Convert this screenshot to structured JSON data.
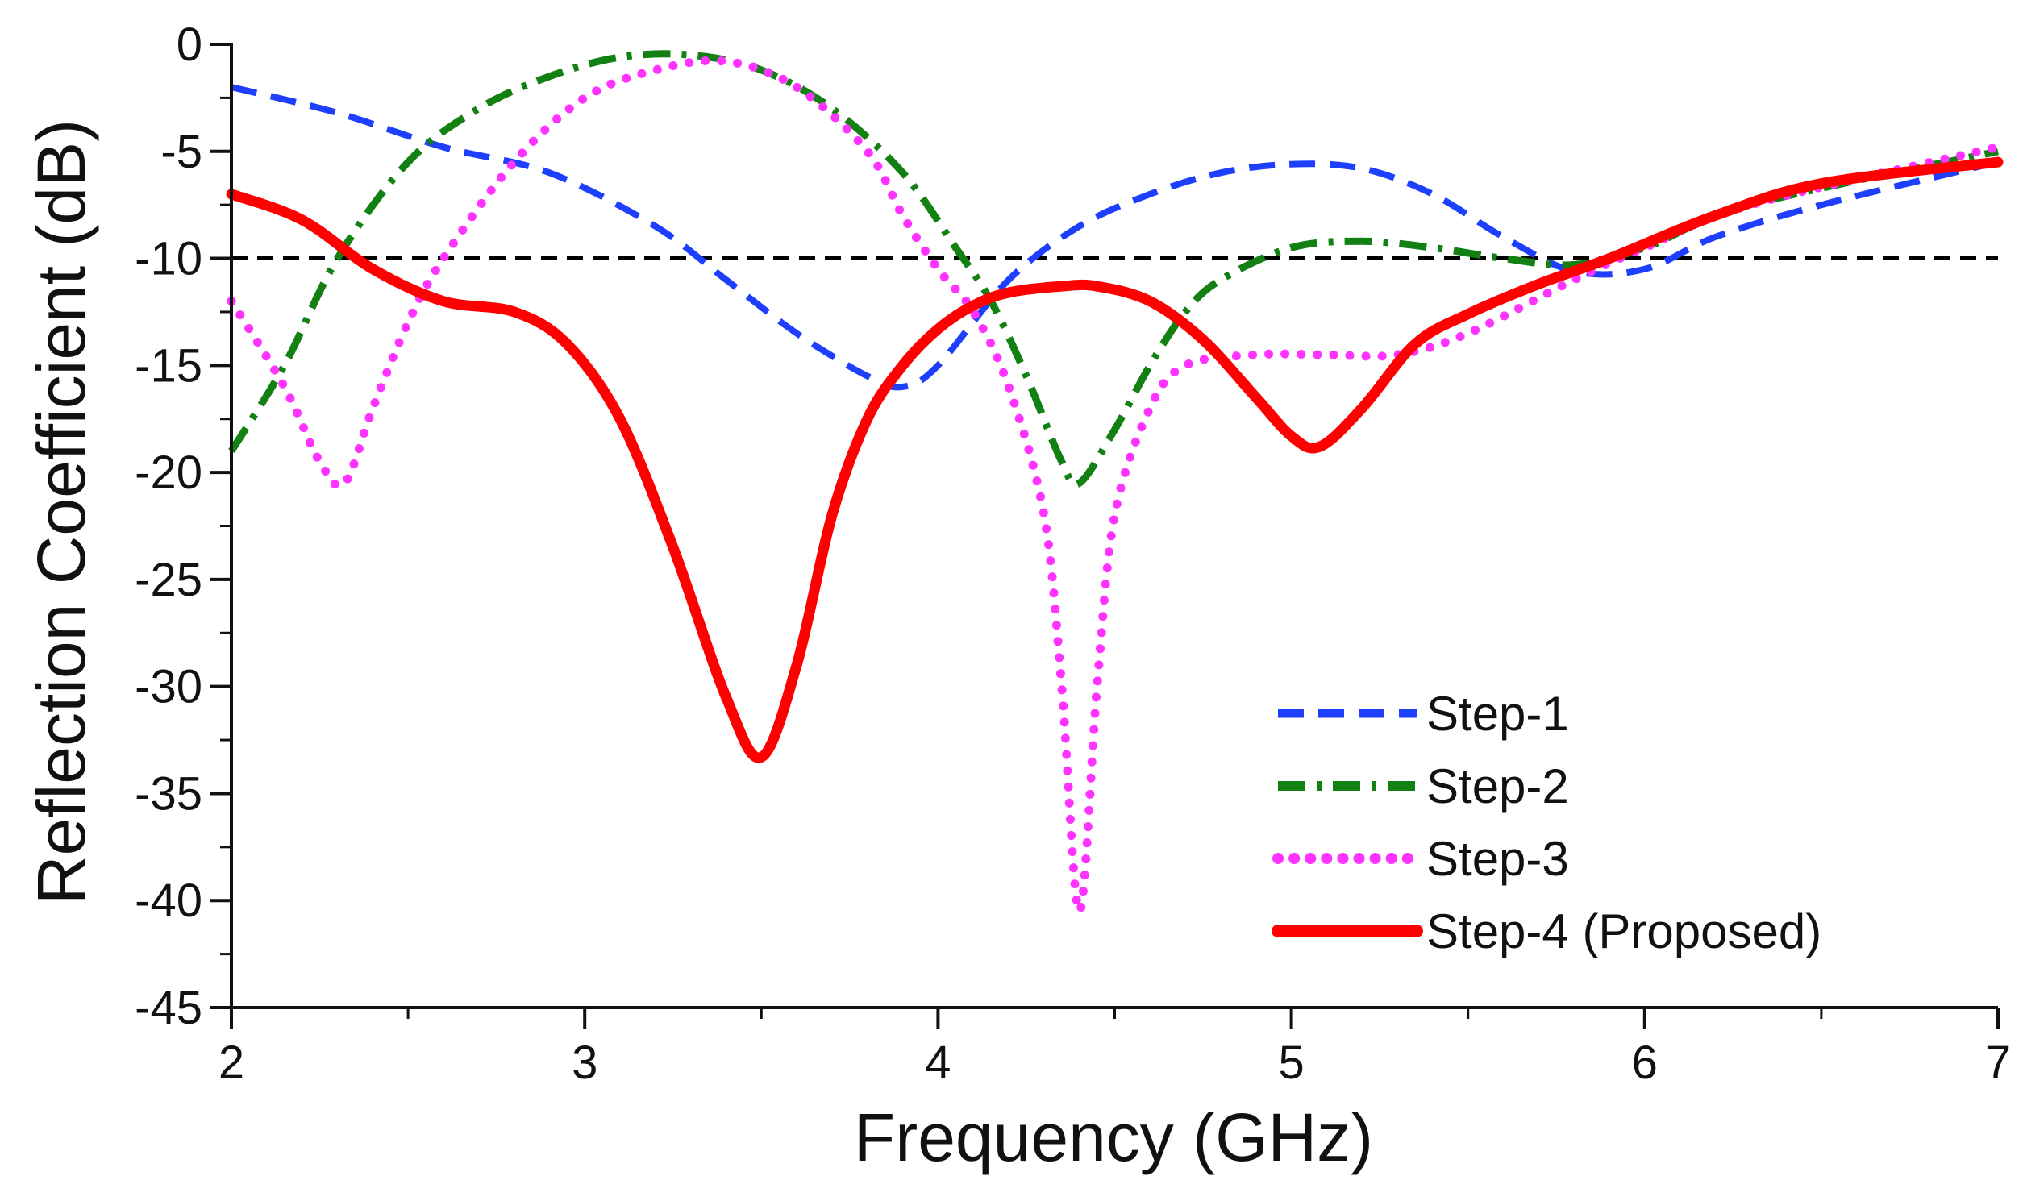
{
  "chart_data": {
    "type": "line",
    "title": "",
    "xlabel": "Frequency (GHz)",
    "ylabel": "Reflection Coefficient (dB)",
    "xlim": [
      2,
      7
    ],
    "ylim": [
      -45,
      0
    ],
    "x_ticks": [
      2,
      3,
      4,
      5,
      6,
      7
    ],
    "x_tick_labels": [
      "2",
      "3",
      "4",
      "5",
      "6",
      "7"
    ],
    "y_ticks": [
      0,
      -5,
      -10,
      -15,
      -20,
      -25,
      -30,
      -35,
      -40,
      -45
    ],
    "y_tick_labels": [
      "0",
      "-5",
      "-10",
      "-15",
      "-20",
      "-25",
      "-30",
      "-35",
      "-40",
      "-45"
    ],
    "reference_line": {
      "y": -10,
      "style": "dashed",
      "color": "#000000"
    },
    "legend_position": "bottom-right",
    "series": [
      {
        "name": "Step-1",
        "color": "#1f3fff",
        "style": "dashed",
        "x": [
          2.0,
          2.3,
          2.6,
          2.9,
          3.2,
          3.4,
          3.6,
          3.8,
          3.9,
          4.0,
          4.2,
          4.4,
          4.6,
          4.8,
          5.0,
          5.2,
          5.4,
          5.6,
          5.8,
          6.0,
          6.2,
          6.5,
          7.0
        ],
        "y": [
          -2.0,
          -3.2,
          -4.8,
          -6.0,
          -8.5,
          -11.0,
          -13.5,
          -15.5,
          -16.0,
          -15.0,
          -11.0,
          -8.5,
          -7.0,
          -6.0,
          -5.6,
          -5.8,
          -7.0,
          -9.0,
          -10.6,
          -10.5,
          -9.0,
          -7.5,
          -5.5
        ]
      },
      {
        "name": "Step-2",
        "color": "#138013",
        "style": "dash-dot",
        "x": [
          2.0,
          2.15,
          2.3,
          2.5,
          2.7,
          2.9,
          3.1,
          3.3,
          3.5,
          3.7,
          3.9,
          4.05,
          4.15,
          4.25,
          4.35,
          4.4,
          4.5,
          4.6,
          4.7,
          4.8,
          5.0,
          5.2,
          5.4,
          5.6,
          5.8,
          6.0,
          6.3,
          7.0
        ],
        "y": [
          -19.0,
          -15.0,
          -10.0,
          -5.5,
          -3.0,
          -1.5,
          -0.6,
          -0.5,
          -1.2,
          -3.0,
          -6.0,
          -9.5,
          -12.0,
          -15.5,
          -19.5,
          -20.5,
          -18.0,
          -15.0,
          -12.5,
          -11.0,
          -9.5,
          -9.2,
          -9.5,
          -10.0,
          -10.3,
          -9.5,
          -7.5,
          -5.0
        ]
      },
      {
        "name": "Step-3",
        "color": "#ff33ff",
        "style": "dotted",
        "x": [
          2.0,
          2.15,
          2.25,
          2.32,
          2.4,
          2.5,
          2.6,
          2.8,
          3.0,
          3.2,
          3.4,
          3.6,
          3.8,
          3.9,
          4.0,
          4.1,
          4.2,
          4.3,
          4.35,
          4.4,
          4.45,
          4.5,
          4.6,
          4.7,
          4.9,
          5.1,
          5.3,
          5.5,
          5.8,
          6.0,
          6.3,
          7.0
        ],
        "y": [
          -12.0,
          -16.0,
          -19.5,
          -20.5,
          -17.0,
          -13.0,
          -10.0,
          -5.5,
          -2.5,
          -1.2,
          -0.8,
          -2.0,
          -5.0,
          -8.0,
          -10.5,
          -12.5,
          -16.0,
          -22.0,
          -30.0,
          -40.5,
          -30.0,
          -22.0,
          -17.0,
          -15.0,
          -14.5,
          -14.5,
          -14.5,
          -13.5,
          -11.0,
          -9.5,
          -7.5,
          -4.8
        ]
      },
      {
        "name": "Step-4 (Proposed)",
        "color": "#ff0000",
        "style": "solid",
        "x": [
          2.0,
          2.2,
          2.4,
          2.6,
          2.8,
          2.95,
          3.1,
          3.25,
          3.4,
          3.5,
          3.6,
          3.7,
          3.8,
          3.9,
          4.0,
          4.1,
          4.2,
          4.35,
          4.45,
          4.6,
          4.75,
          4.9,
          5.0,
          5.08,
          5.2,
          5.35,
          5.5,
          5.7,
          5.9,
          6.2,
          6.5,
          7.0
        ],
        "y": [
          -7.0,
          -8.2,
          -10.5,
          -12.0,
          -12.5,
          -14.0,
          -17.5,
          -23.5,
          -30.5,
          -33.3,
          -29.0,
          -22.0,
          -17.5,
          -15.0,
          -13.3,
          -12.2,
          -11.6,
          -11.3,
          -11.3,
          -12.0,
          -13.8,
          -16.5,
          -18.3,
          -18.8,
          -17.0,
          -14.0,
          -12.6,
          -11.2,
          -10.0,
          -8.0,
          -6.5,
          -5.5
        ]
      }
    ]
  }
}
